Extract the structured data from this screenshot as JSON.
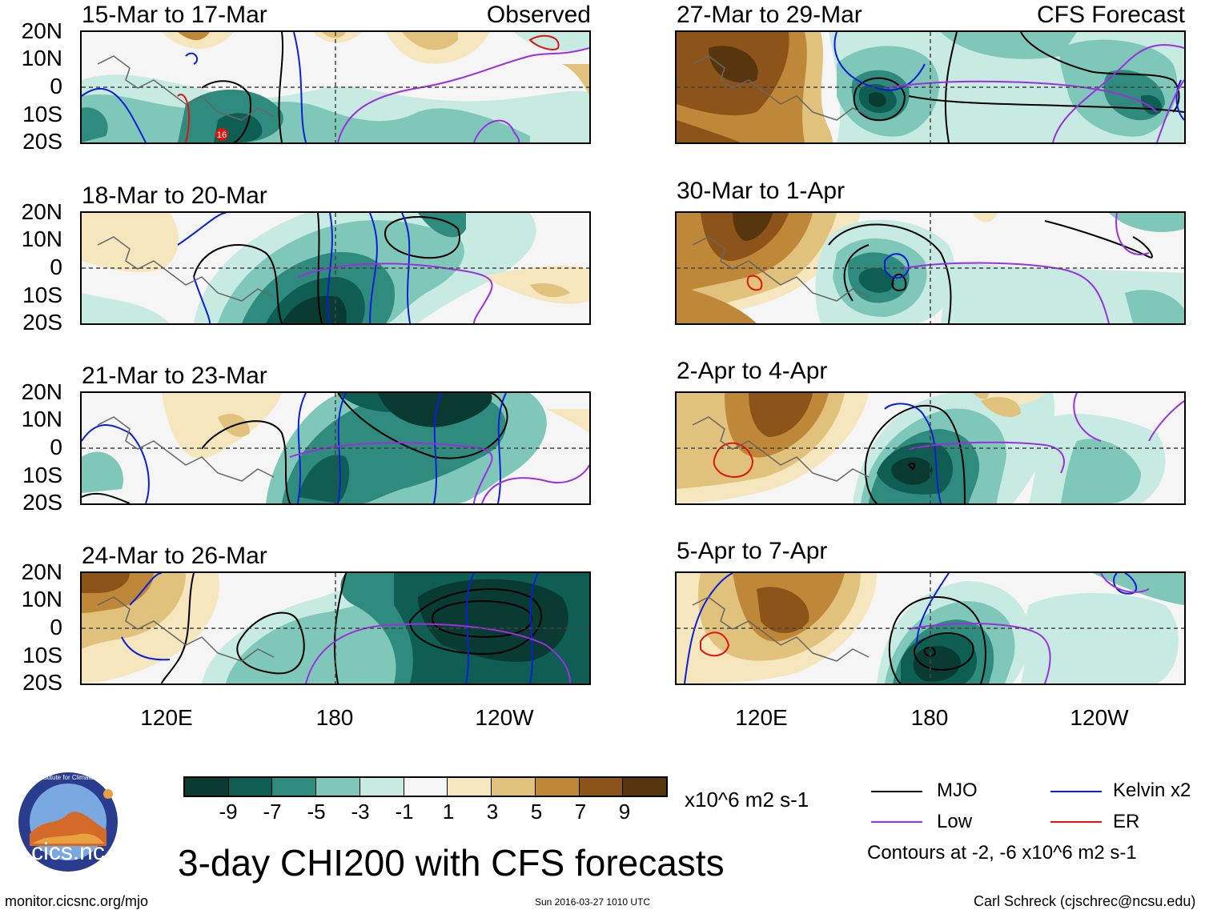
{
  "panels": [
    {
      "id": "p1",
      "title": "15-Mar to 17-Mar",
      "tag": "Observed",
      "label16": "16"
    },
    {
      "id": "p2",
      "title": "18-Mar to 20-Mar",
      "tag": ""
    },
    {
      "id": "p3",
      "title": "21-Mar to 23-Mar",
      "tag": ""
    },
    {
      "id": "p4",
      "title": "24-Mar to 26-Mar",
      "tag": ""
    },
    {
      "id": "p5",
      "title": "27-Mar to 29-Mar",
      "tag": "CFS Forecast"
    },
    {
      "id": "p6",
      "title": "30-Mar to 1-Apr",
      "tag": ""
    },
    {
      "id": "p7",
      "title": "2-Apr to 4-Apr",
      "tag": ""
    },
    {
      "id": "p8",
      "title": "5-Apr to 7-Apr",
      "tag": ""
    }
  ],
  "lat_labels": [
    "20N",
    "10N",
    "0",
    "10S",
    "20S"
  ],
  "lon_labels": [
    "120E",
    "180",
    "120W"
  ],
  "colorbar": {
    "colors": [
      "#0a3b33",
      "#0e5e54",
      "#2f8b7e",
      "#7ec7b9",
      "#c7eae3",
      "#f5f5f5",
      "#f6e6bd",
      "#e1c27c",
      "#bf8838",
      "#8c5419",
      "#57360f"
    ],
    "labels": [
      "-9",
      "-7",
      "-5",
      "-3",
      "-1",
      "1",
      "3",
      "5",
      "7",
      "9"
    ],
    "units": "x10^6 m2 s-1"
  },
  "legend": {
    "items": [
      {
        "label": "MJO",
        "color": "#000000"
      },
      {
        "label": "Kelvin x2",
        "color": "#0b1fd6"
      },
      {
        "label": "Low",
        "color": "#9b30e0"
      },
      {
        "label": "ER",
        "color": "#e0140e"
      }
    ],
    "contours_note": "Contours at -2, -6 x10^6 m2 s-1"
  },
  "logo_text": "cics.nc",
  "logo_ring_text": "Cooperative Institute for Climate and Satellites",
  "main_title": "3-day CHI200 with CFS forecasts",
  "footer": {
    "left": "monitor.cicsnc.org/mjo",
    "center": "Sun 2016-03-27 1010 UTC",
    "right": "Carl Schreck (cjschrec@ncsu.edu)"
  }
}
